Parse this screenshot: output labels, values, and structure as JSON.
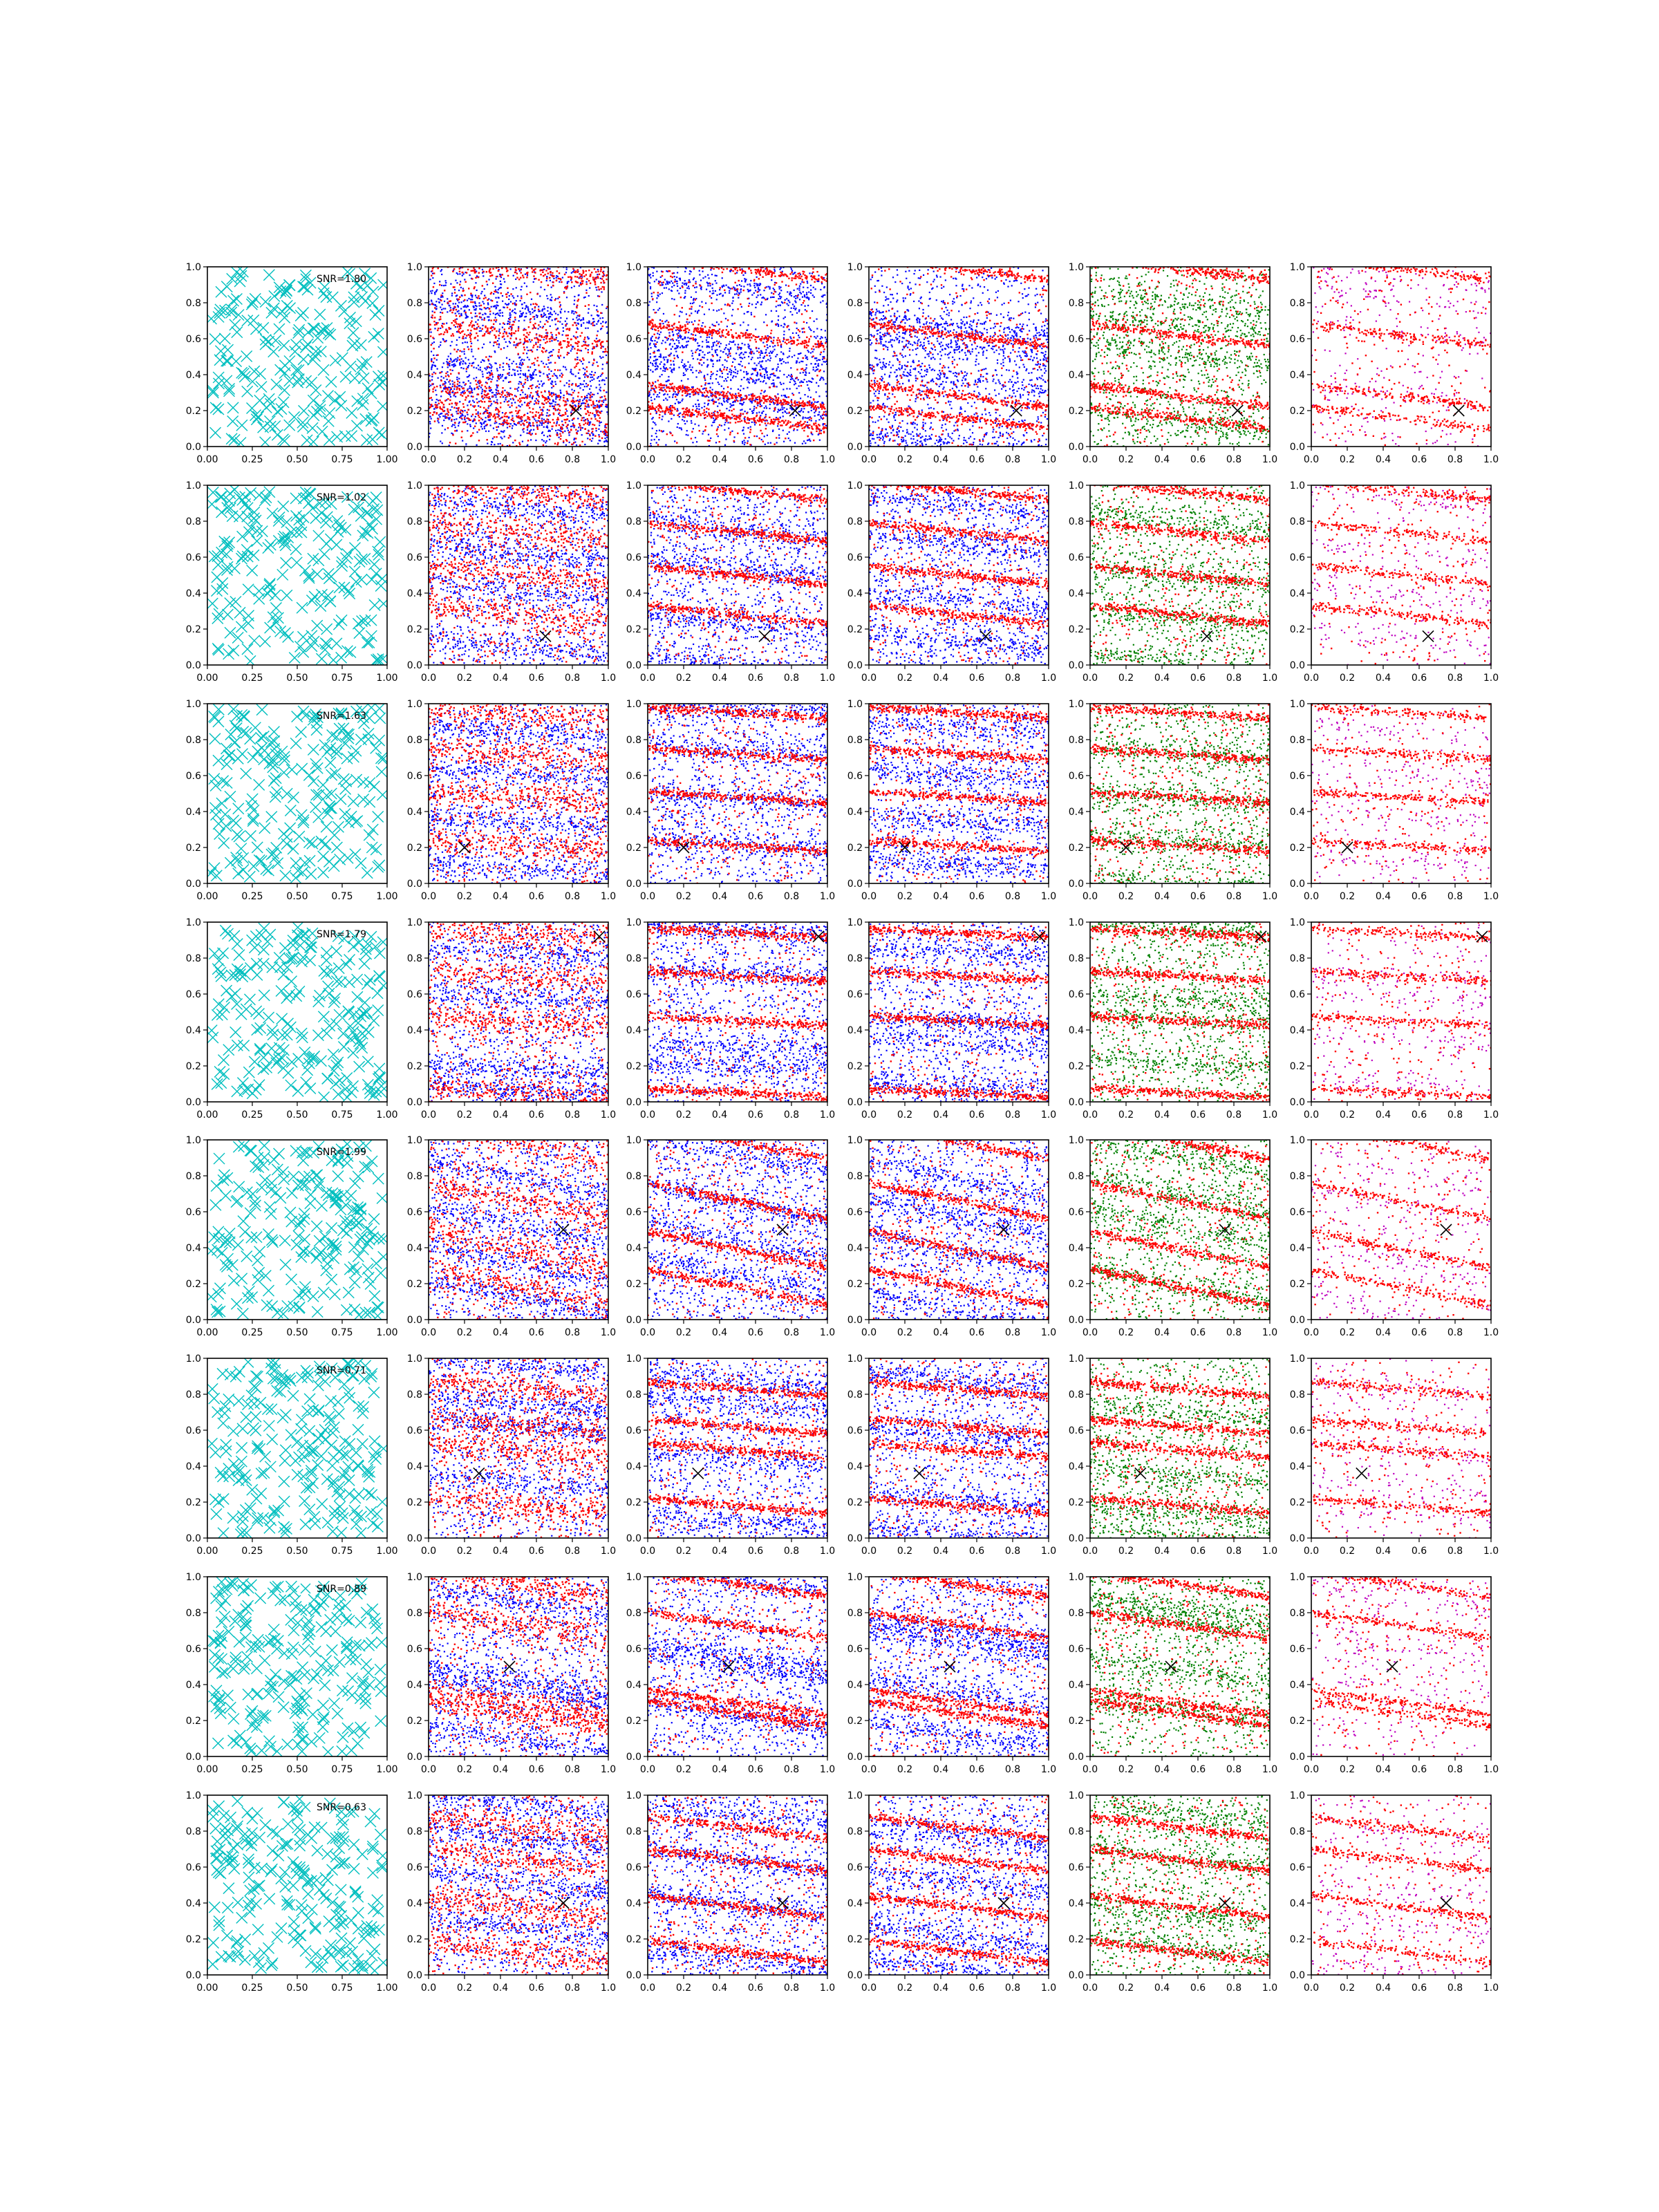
{
  "figure": {
    "rows": 8,
    "cols": 6,
    "colors": {
      "cyan": "#00bfbf",
      "red": "#ff0000",
      "blue": "#0000ff",
      "green": "#008000",
      "magenta": "#bf00bf",
      "marker": "#000000"
    }
  },
  "chart_data": {
    "type": "scatter",
    "grid": false,
    "marker_symbol": "x",
    "left_column": {
      "xlim": [
        0,
        1
      ],
      "ylim": [
        0,
        1
      ],
      "x_ticks": [
        "0.00",
        "0.25",
        "0.50",
        "0.75",
        "1.00"
      ],
      "y_ticks": [
        "0.0",
        "0.2",
        "0.4",
        "0.6",
        "0.8",
        "1.0"
      ],
      "legend_position": "top-right"
    },
    "other_columns": {
      "xlim": [
        0,
        1
      ],
      "ylim": [
        0,
        1
      ],
      "x_ticks": [
        "0.0",
        "0.2",
        "0.4",
        "0.6",
        "0.8",
        "1.0"
      ],
      "y_ticks": [
        "0.0",
        "0.2",
        "0.4",
        "0.6",
        "0.8",
        "1.0"
      ]
    },
    "column_colors": [
      [
        "cyan"
      ],
      [
        "red",
        "blue"
      ],
      [
        "red",
        "blue"
      ],
      [
        "red",
        "blue"
      ],
      [
        "red",
        "green"
      ],
      [
        "red",
        "magenta"
      ]
    ],
    "rows": [
      {
        "legend": "SNR=1.80",
        "marker": [
          0.82,
          0.2
        ],
        "slope": -0.12,
        "bands": [
          0.99,
          0.62,
          0.28,
          0.16
        ]
      },
      {
        "legend": "SNR=1.02",
        "marker": [
          0.65,
          0.16
        ],
        "slope": -0.1,
        "bands": [
          0.97,
          0.74,
          0.5,
          0.28
        ]
      },
      {
        "legend": "SNR=1.63",
        "marker": [
          0.2,
          0.2
        ],
        "slope": -0.06,
        "bands": [
          0.95,
          0.72,
          0.48,
          0.21
        ]
      },
      {
        "legend": "SNR=1.79",
        "marker": [
          0.95,
          0.92
        ],
        "slope": -0.05,
        "bands": [
          0.94,
          0.7,
          0.45,
          0.05
        ]
      },
      {
        "legend": "SNR=1.99",
        "marker": [
          0.75,
          0.5
        ],
        "slope": -0.2,
        "bands": [
          0.99,
          0.66,
          0.39,
          0.18
        ]
      },
      {
        "legend": "SNR=0.71",
        "marker": [
          0.28,
          0.36
        ],
        "slope": -0.08,
        "bands": [
          0.83,
          0.62,
          0.49,
          0.18
        ]
      },
      {
        "legend": "SNR=0.89",
        "marker": [
          0.45,
          0.5
        ],
        "slope": -0.14,
        "bands": [
          0.96,
          0.73,
          0.3,
          0.24
        ]
      },
      {
        "legend": "SNR=0.63",
        "marker": [
          0.75,
          0.4
        ],
        "slope": -0.12,
        "bands": [
          0.82,
          0.64,
          0.38,
          0.13
        ]
      }
    ]
  }
}
